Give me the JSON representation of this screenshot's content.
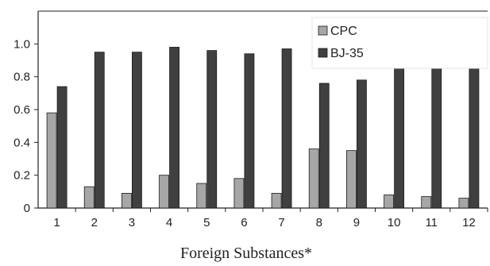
{
  "chart_data": {
    "type": "bar",
    "title": "",
    "xlabel": "Foreign Substances*",
    "ylabel": "",
    "categories": [
      "1",
      "2",
      "3",
      "4",
      "5",
      "6",
      "7",
      "8",
      "9",
      "10",
      "11",
      "12"
    ],
    "series": [
      {
        "name": "CPC",
        "color": "#a6a6a6",
        "values": [
          0.58,
          0.13,
          0.09,
          0.2,
          0.15,
          0.18,
          0.09,
          0.36,
          0.35,
          0.08,
          0.07,
          0.06
        ]
      },
      {
        "name": "BJ-35",
        "color": "#404040",
        "values": [
          0.74,
          0.95,
          0.95,
          0.98,
          0.96,
          0.94,
          0.97,
          0.76,
          0.78,
          0.94,
          0.96,
          0.93
        ]
      }
    ],
    "ylim": [
      0,
      1.2
    ],
    "yticks": [
      "0",
      "0.2",
      "0.4",
      "0.6",
      "0.8",
      "1.0"
    ],
    "grid": false,
    "legend": "top-right"
  }
}
